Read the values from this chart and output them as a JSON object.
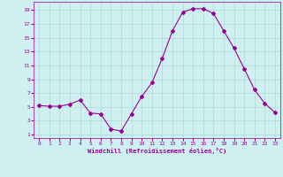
{
  "x": [
    0,
    1,
    2,
    3,
    4,
    5,
    6,
    7,
    8,
    9,
    10,
    11,
    12,
    13,
    14,
    15,
    16,
    17,
    18,
    19,
    20,
    21,
    22,
    23
  ],
  "y": [
    5.2,
    5.1,
    5.1,
    5.4,
    6.0,
    4.1,
    4.0,
    1.8,
    1.5,
    4.0,
    6.5,
    8.5,
    12.0,
    16.0,
    18.7,
    19.2,
    19.2,
    18.5,
    16.0,
    13.5,
    10.5,
    7.5,
    5.5,
    4.2
  ],
  "line_color": "#990099",
  "marker": "D",
  "markersize": 2,
  "bg_color": "#cff0f0",
  "grid_color": "#b0d8d8",
  "xlabel": "Windchill (Refroidissement éolien,°C)",
  "xlabel_color": "#990099",
  "tick_color": "#990099",
  "yticks": [
    1,
    3,
    5,
    7,
    9,
    11,
    13,
    15,
    17,
    19
  ],
  "xticks": [
    0,
    1,
    2,
    3,
    4,
    5,
    6,
    7,
    8,
    9,
    10,
    11,
    12,
    13,
    14,
    15,
    16,
    17,
    18,
    19,
    20,
    21,
    22,
    23
  ],
  "xlim": [
    -0.5,
    23.5
  ],
  "ylim": [
    0.5,
    20.2
  ]
}
